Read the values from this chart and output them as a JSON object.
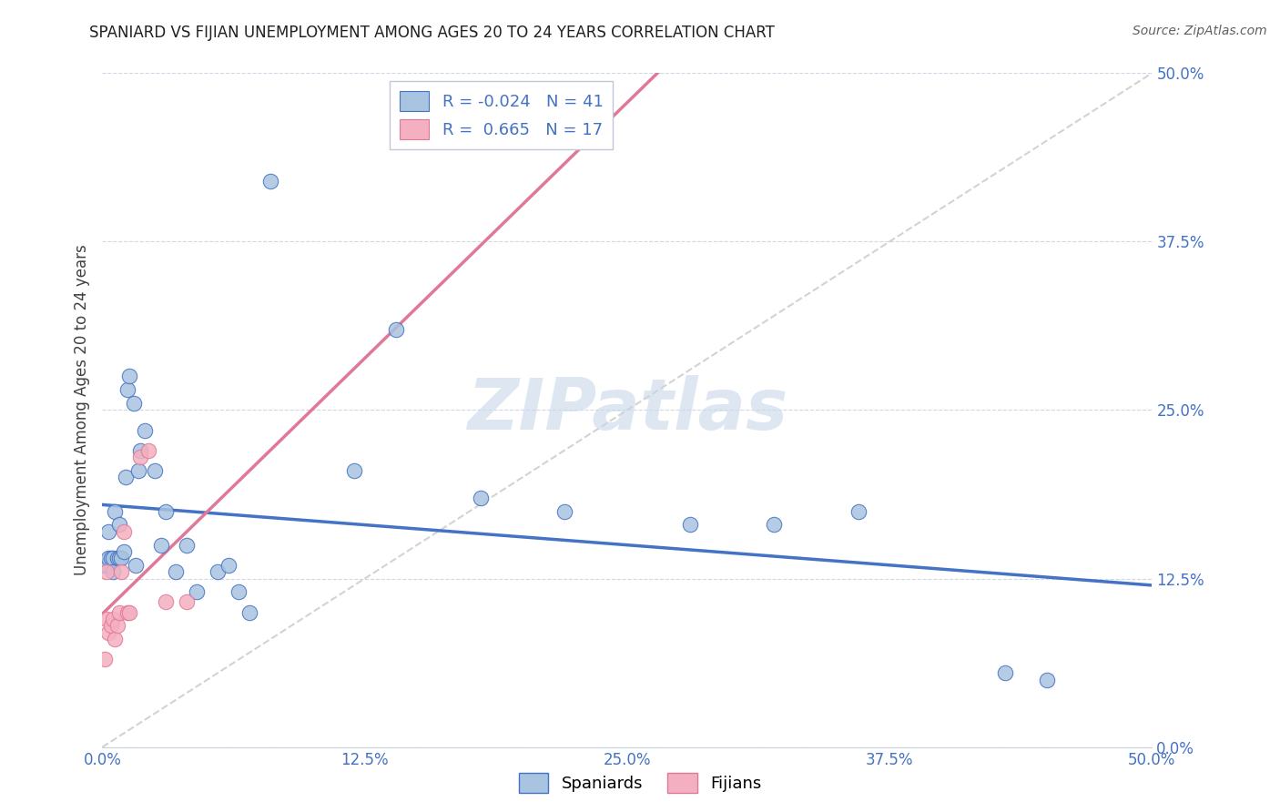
{
  "title": "SPANIARD VS FIJIAN UNEMPLOYMENT AMONG AGES 20 TO 24 YEARS CORRELATION CHART",
  "source": "Source: ZipAtlas.com",
  "xlim": [
    0,
    0.5
  ],
  "ylim": [
    0,
    0.5
  ],
  "tick_vals": [
    0.0,
    0.125,
    0.25,
    0.375,
    0.5
  ],
  "tick_labels": [
    "0.0%",
    "12.5%",
    "25.0%",
    "37.5%",
    "50.0%"
  ],
  "spaniards_x": [
    0.001,
    0.002,
    0.003,
    0.003,
    0.004,
    0.005,
    0.005,
    0.006,
    0.007,
    0.008,
    0.008,
    0.009,
    0.01,
    0.011,
    0.012,
    0.013,
    0.015,
    0.016,
    0.017,
    0.018,
    0.02,
    0.025,
    0.028,
    0.03,
    0.035,
    0.04,
    0.045,
    0.055,
    0.06,
    0.065,
    0.07,
    0.08,
    0.12,
    0.14,
    0.18,
    0.22,
    0.28,
    0.32,
    0.36,
    0.43,
    0.45
  ],
  "spaniards_y": [
    0.135,
    0.135,
    0.14,
    0.16,
    0.14,
    0.14,
    0.13,
    0.175,
    0.14,
    0.165,
    0.14,
    0.14,
    0.145,
    0.2,
    0.265,
    0.275,
    0.255,
    0.135,
    0.205,
    0.22,
    0.235,
    0.205,
    0.15,
    0.175,
    0.13,
    0.15,
    0.115,
    0.13,
    0.135,
    0.115,
    0.1,
    0.42,
    0.205,
    0.31,
    0.185,
    0.175,
    0.165,
    0.165,
    0.175,
    0.055,
    0.05
  ],
  "fijians_x": [
    0.001,
    0.002,
    0.002,
    0.003,
    0.004,
    0.005,
    0.006,
    0.007,
    0.008,
    0.009,
    0.01,
    0.012,
    0.013,
    0.018,
    0.022,
    0.03,
    0.04
  ],
  "fijians_y": [
    0.065,
    0.13,
    0.095,
    0.085,
    0.09,
    0.095,
    0.08,
    0.09,
    0.1,
    0.13,
    0.16,
    0.1,
    0.1,
    0.215,
    0.22,
    0.108,
    0.108
  ],
  "spaniards_color": "#a8c4e0",
  "spaniards_edge": "#4472c4",
  "fijians_color": "#f4b0c0",
  "fijians_edge": "#e07898",
  "spaniards_line_color": "#4472c4",
  "fijians_line_color": "#e07898",
  "diag_line_color": "#c8c8c8",
  "tick_color": "#4472c4",
  "R_spaniards": -0.024,
  "N_spaniards": 41,
  "R_fijians": 0.665,
  "N_fijians": 17,
  "watermark": "ZIPatlas",
  "watermark_color": "#c8d8e8",
  "legend_label_spaniards": "Spaniards",
  "legend_label_fijians": "Fijians"
}
